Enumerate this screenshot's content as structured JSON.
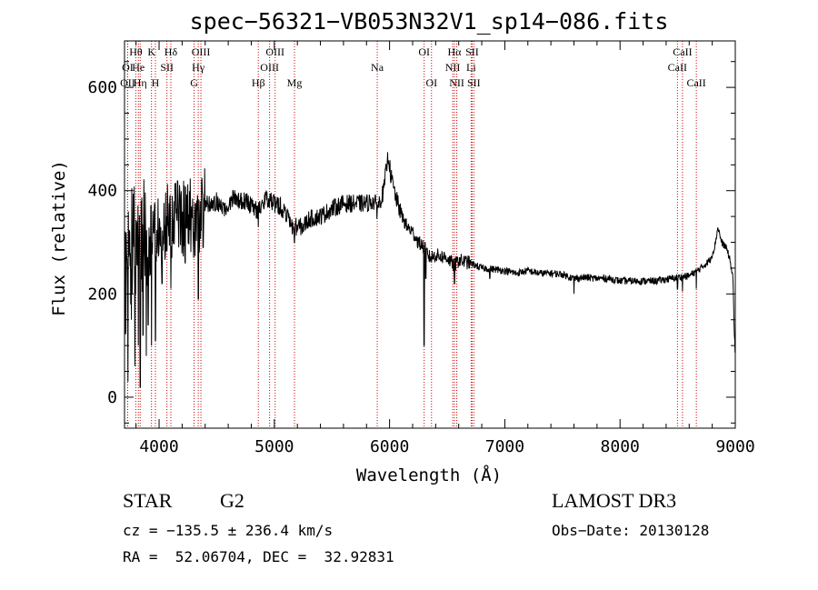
{
  "chart_data": {
    "type": "line",
    "title": "spec−56321−VB053N32V1_sp14−086.fits",
    "xlabel": "Wavelength (Å)",
    "ylabel": "Flux (relative)",
    "xlim": [
      3700,
      9000
    ],
    "ylim": [
      -60,
      690
    ],
    "xticks": [
      4000,
      5000,
      6000,
      7000,
      8000,
      9000
    ],
    "yticks": [
      0,
      200,
      400,
      600
    ],
    "xtick_labels": [
      "4000",
      "5000",
      "6000",
      "7000",
      "8000",
      "9000"
    ],
    "ytick_labels": [
      "0",
      "200",
      "400",
      "600"
    ],
    "series": [
      {
        "name": "flux",
        "anchors": [
          [
            3700,
            220
          ],
          [
            3740,
            280
          ],
          [
            3780,
            300
          ],
          [
            3820,
            290
          ],
          [
            3850,
            310
          ],
          [
            3880,
            320
          ],
          [
            3920,
            300
          ],
          [
            3960,
            330
          ],
          [
            4000,
            320
          ],
          [
            4040,
            330
          ],
          [
            4080,
            350
          ],
          [
            4120,
            340
          ],
          [
            4160,
            360
          ],
          [
            4200,
            340
          ],
          [
            4260,
            360
          ],
          [
            4300,
            350
          ],
          [
            4340,
            330
          ],
          [
            4360,
            370
          ],
          [
            4400,
            380
          ],
          [
            4450,
            370
          ],
          [
            4500,
            380
          ],
          [
            4550,
            360
          ],
          [
            4600,
            375
          ],
          [
            4650,
            390
          ],
          [
            4700,
            380
          ],
          [
            4750,
            380
          ],
          [
            4800,
            370
          ],
          [
            4860,
            360
          ],
          [
            4900,
            380
          ],
          [
            4950,
            385
          ],
          [
            5000,
            375
          ],
          [
            5050,
            370
          ],
          [
            5100,
            355
          ],
          [
            5150,
            330
          ],
          [
            5200,
            330
          ],
          [
            5250,
            330
          ],
          [
            5300,
            345
          ],
          [
            5400,
            350
          ],
          [
            5500,
            365
          ],
          [
            5600,
            375
          ],
          [
            5700,
            375
          ],
          [
            5800,
            375
          ],
          [
            5850,
            380
          ],
          [
            5900,
            370
          ],
          [
            5950,
            400
          ],
          [
            5970,
            440
          ],
          [
            5990,
            470
          ],
          [
            6010,
            430
          ],
          [
            6050,
            390
          ],
          [
            6100,
            355
          ],
          [
            6150,
            330
          ],
          [
            6200,
            320
          ],
          [
            6250,
            300
          ],
          [
            6300,
            290
          ],
          [
            6350,
            270
          ],
          [
            6400,
            275
          ],
          [
            6500,
            270
          ],
          [
            6560,
            255
          ],
          [
            6600,
            265
          ],
          [
            6700,
            260
          ],
          [
            6750,
            255
          ],
          [
            6800,
            250
          ],
          [
            6900,
            248
          ],
          [
            7000,
            245
          ],
          [
            7100,
            240
          ],
          [
            7200,
            245
          ],
          [
            7300,
            240
          ],
          [
            7400,
            240
          ],
          [
            7500,
            238
          ],
          [
            7600,
            230
          ],
          [
            7700,
            232
          ],
          [
            7800,
            230
          ],
          [
            7900,
            230
          ],
          [
            8000,
            225
          ],
          [
            8100,
            225
          ],
          [
            8200,
            225
          ],
          [
            8300,
            225
          ],
          [
            8400,
            228
          ],
          [
            8500,
            232
          ],
          [
            8600,
            235
          ],
          [
            8700,
            250
          ],
          [
            8780,
            265
          ],
          [
            8820,
            290
          ],
          [
            8850,
            330
          ],
          [
            8880,
            300
          ],
          [
            8920,
            290
          ],
          [
            8950,
            270
          ],
          [
            8980,
            230
          ],
          [
            8990,
            130
          ],
          [
            9000,
            80
          ]
        ],
        "features": [
          [
            3730,
            30
          ],
          [
            3760,
            150
          ],
          [
            3790,
            60
          ],
          [
            3820,
            100
          ],
          [
            3836,
            20
          ],
          [
            3860,
            120
          ],
          [
            3889,
            80
          ],
          [
            3905,
            140
          ],
          [
            3934,
            100
          ],
          [
            3968,
            110
          ],
          [
            4026,
            220
          ],
          [
            4102,
            210
          ],
          [
            4227,
            260
          ],
          [
            4300,
            270
          ],
          [
            4340,
            190
          ],
          [
            4383,
            290
          ],
          [
            4861,
            330
          ],
          [
            5175,
            300
          ],
          [
            5890,
            345
          ],
          [
            6300,
            100
          ],
          [
            6315,
            230
          ],
          [
            6563,
            220
          ],
          [
            6870,
            230
          ],
          [
            7600,
            200
          ],
          [
            8498,
            210
          ],
          [
            8542,
            205
          ],
          [
            8662,
            210
          ]
        ]
      }
    ],
    "lines": [
      {
        "label": "OI",
        "x": 3727,
        "row": 1
      },
      {
        "label": "OII",
        "x": 3727,
        "row": 2
      },
      {
        "label": "Hθ",
        "x": 3798,
        "row": 0
      },
      {
        "label": "He",
        "x": 3820,
        "row": 1
      },
      {
        "label": "Hη",
        "x": 3836,
        "row": 2
      },
      {
        "label": "K",
        "x": 3934,
        "row": 0
      },
      {
        "label": "H",
        "x": 3968,
        "row": 2
      },
      {
        "label": "SII",
        "x": 4068,
        "row": 1
      },
      {
        "label": "Hδ",
        "x": 4102,
        "row": 0
      },
      {
        "label": "OIII",
        "x": 4363,
        "row": 0
      },
      {
        "label": "Hγ",
        "x": 4340,
        "row": 1
      },
      {
        "label": "G",
        "x": 4304,
        "row": 2
      },
      {
        "label": "Hβ",
        "x": 4861,
        "row": 2
      },
      {
        "label": "OIII",
        "x": 5007,
        "row": 0
      },
      {
        "label": "OIII",
        "x": 4959,
        "row": 1
      },
      {
        "label": "Mg",
        "x": 5175,
        "row": 2
      },
      {
        "label": "Na",
        "x": 5893,
        "row": 1
      },
      {
        "label": "OI",
        "x": 6300,
        "row": 0
      },
      {
        "label": "OI",
        "x": 6364,
        "row": 2
      },
      {
        "label": "Hα",
        "x": 6563,
        "row": 0
      },
      {
        "label": "SII",
        "x": 6716,
        "row": 0
      },
      {
        "label": "NII",
        "x": 6548,
        "row": 1
      },
      {
        "label": "Li",
        "x": 6708,
        "row": 1
      },
      {
        "label": "NII",
        "x": 6583,
        "row": 2
      },
      {
        "label": "SII",
        "x": 6731,
        "row": 2
      },
      {
        "label": "CaII",
        "x": 8542,
        "row": 0
      },
      {
        "label": "CaII",
        "x": 8498,
        "row": 1
      },
      {
        "label": "CaII",
        "x": 8662,
        "row": 2
      }
    ]
  },
  "info": {
    "object_class": "STAR",
    "subclass": "G2",
    "survey": "LAMOST DR3",
    "redshift_line": "cz = −135.5 ± 236.4 km/s",
    "obs_date_line": "Obs−Date: 20130128",
    "coords_line": "RA =  52.06704, DEC =  32.92831"
  },
  "colors": {
    "line_marker": "#cc0000",
    "axis": "#000000",
    "spectrum": "#000000"
  }
}
